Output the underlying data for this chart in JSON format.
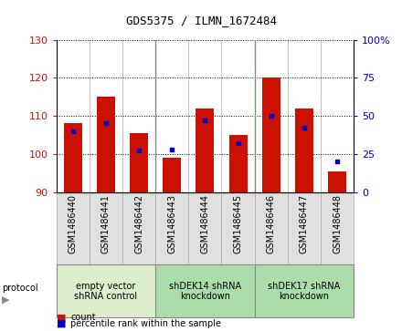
{
  "title": "GDS5375 / ILMN_1672484",
  "samples": [
    "GSM1486440",
    "GSM1486441",
    "GSM1486442",
    "GSM1486443",
    "GSM1486444",
    "GSM1486445",
    "GSM1486446",
    "GSM1486447",
    "GSM1486448"
  ],
  "counts": [
    108,
    115,
    105.5,
    99,
    112,
    105,
    120,
    112,
    95.5
  ],
  "percentile_ranks": [
    40,
    45,
    27,
    28,
    47,
    32,
    50,
    42,
    20
  ],
  "ylim_left": [
    90,
    130
  ],
  "ylim_right": [
    0,
    100
  ],
  "yticks_left": [
    90,
    100,
    110,
    120,
    130
  ],
  "yticks_right": [
    0,
    25,
    50,
    75,
    100
  ],
  "bar_color": "#cc1100",
  "dot_color": "#0000cc",
  "bar_width": 0.55,
  "groups": [
    {
      "label": "empty vector\nshRNA control",
      "start": 0,
      "end": 3,
      "color": "#ccffcc"
    },
    {
      "label": "shDEK14 shRNA\nknockdown",
      "start": 3,
      "end": 6,
      "color": "#88dd88"
    },
    {
      "label": "shDEK17 shRNA\nknockdown",
      "start": 6,
      "end": 9,
      "color": "#88dd88"
    }
  ],
  "group_colors": [
    "#ddeecc",
    "#aaddaa",
    "#aaddaa"
  ],
  "bar_color_hex": "#cc1100",
  "dot_color_hex": "#0000cc",
  "tick_color_left": "#cc1100",
  "tick_color_right": "#0000cc",
  "title_fontsize": 9,
  "tick_fontsize": 8,
  "sample_fontsize": 7,
  "group_fontsize": 7
}
